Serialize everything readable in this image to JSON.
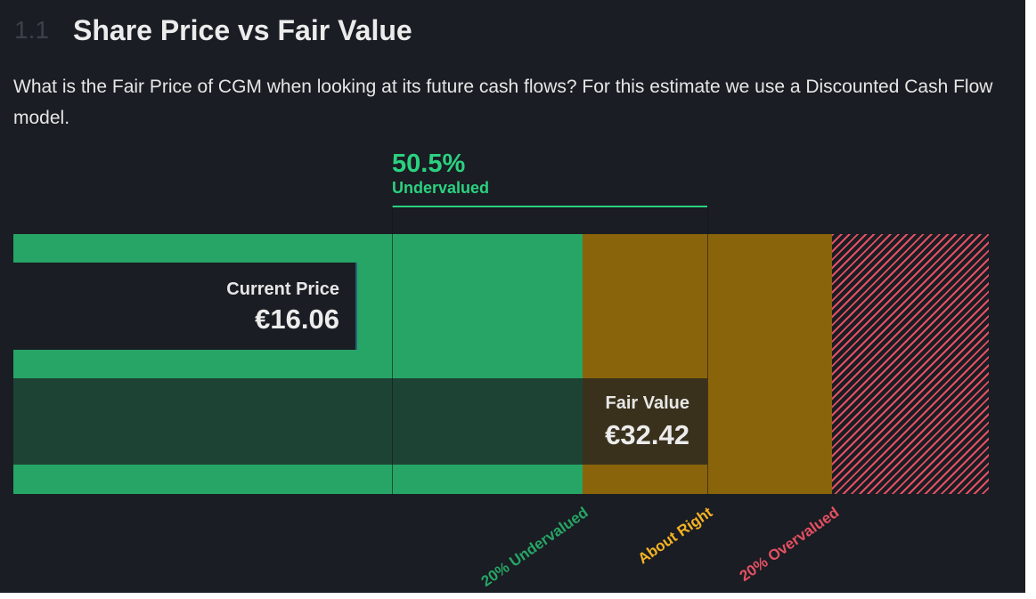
{
  "section": {
    "number": "1.1",
    "title": "Share Price vs Fair Value",
    "description": "What is the Fair Price of CGM when looking at its future cash flows? For this estimate we use a Discounted Cash Flow model."
  },
  "chart_data": {
    "type": "bar",
    "current_price": {
      "label": "Current Price",
      "value_text": "€16.06",
      "value": 16.06
    },
    "fair_value": {
      "label": "Fair Value",
      "value_text": "€32.42",
      "value": 32.42
    },
    "valuation": {
      "percent_text": "50.5%",
      "status": "Undervalued",
      "percent": 50.5
    },
    "zones": [
      {
        "label": "20% Undervalued",
        "color": "#26a566"
      },
      {
        "label": "About Right",
        "color": "#8a640b",
        "label_color": "#f5b324"
      },
      {
        "label": "20% Overvalued",
        "color": "#e55063"
      }
    ]
  }
}
